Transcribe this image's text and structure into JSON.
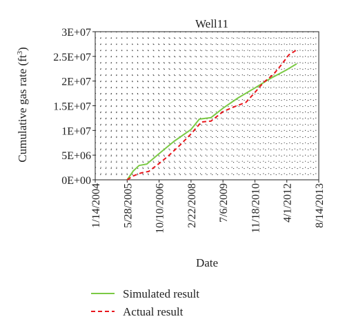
{
  "chart_data": {
    "type": "line",
    "title": "Well11",
    "xlabel": "Date",
    "ylabel": "Cumulative gas rate (ft",
    "ylabel_sup": "3",
    "ylabel_close": ")",
    "x_ticks": [
      "1/14/2004",
      "5/28/2005",
      "10/10/2006",
      "2/22/2008",
      "7/6/2009",
      "11/18/2010",
      "4/1/2012",
      "8/14/2013"
    ],
    "y_ticks": [
      "0E+00",
      "5E+06",
      "1E+07",
      "1.5E+07",
      "2E+07",
      "2.5E+07",
      "3E+07"
    ],
    "xlim": [
      "2004-01-14",
      "2013-08-14"
    ],
    "ylim": [
      0,
      30000000
    ],
    "grid": "dotted",
    "legend_position": "bottom-left",
    "series": [
      {
        "name": "Simulated result",
        "color": "#7ac943",
        "style": "solid",
        "points": [
          [
            "2005-05-28",
            0
          ],
          [
            "2005-09-01",
            1800000
          ],
          [
            "2005-12-01",
            2900000
          ],
          [
            "2006-04-01",
            3200000
          ],
          [
            "2006-10-10",
            5300000
          ],
          [
            "2007-06-01",
            7800000
          ],
          [
            "2008-02-22",
            10200000
          ],
          [
            "2008-07-01",
            12300000
          ],
          [
            "2009-01-01",
            12600000
          ],
          [
            "2009-07-06",
            14500000
          ],
          [
            "2010-03-01",
            16600000
          ],
          [
            "2010-11-18",
            18600000
          ],
          [
            "2011-07-01",
            20400000
          ],
          [
            "2012-04-01",
            22300000
          ],
          [
            "2012-09-01",
            23500000
          ]
        ]
      },
      {
        "name": "Actual result",
        "color": "#e8161c",
        "style": "dashed",
        "points": [
          [
            "2005-05-28",
            0
          ],
          [
            "2005-09-01",
            800000
          ],
          [
            "2006-01-01",
            1400000
          ],
          [
            "2006-05-01",
            1700000
          ],
          [
            "2006-10-10",
            3300000
          ],
          [
            "2007-03-01",
            4800000
          ],
          [
            "2007-09-01",
            7000000
          ],
          [
            "2008-02-22",
            9300000
          ],
          [
            "2008-08-01",
            11700000
          ],
          [
            "2009-01-01",
            11900000
          ],
          [
            "2009-07-06",
            13800000
          ],
          [
            "2010-01-01",
            14800000
          ],
          [
            "2010-07-01",
            15700000
          ],
          [
            "2010-11-18",
            17700000
          ],
          [
            "2011-04-01",
            19700000
          ],
          [
            "2011-09-01",
            21300000
          ],
          [
            "2012-01-01",
            23200000
          ],
          [
            "2012-05-01",
            25300000
          ],
          [
            "2012-09-01",
            26300000
          ]
        ]
      }
    ]
  }
}
